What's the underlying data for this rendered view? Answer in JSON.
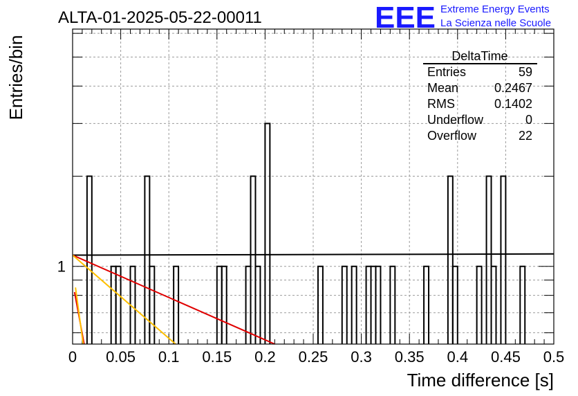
{
  "chart_data": {
    "type": "histogram",
    "title": "ALTA-01-2025-05-22-00011",
    "xlabel": "Time difference [s]",
    "ylabel": "Entries/bin",
    "y_scale": "log",
    "xlim": [
      0,
      0.5
    ],
    "ylim": [
      0.55,
      6.2
    ],
    "grid": true,
    "x_ticks": [
      "0",
      "0.05",
      "0.1",
      "0.15",
      "0.2",
      "0.25",
      "0.3",
      "0.35",
      "0.4",
      "0.45",
      "0.5"
    ],
    "y_ticks": [
      "1"
    ],
    "bin_width": 0.005,
    "bins": [
      {
        "x": 0.015,
        "count": 2
      },
      {
        "x": 0.04,
        "count": 1
      },
      {
        "x": 0.045,
        "count": 1
      },
      {
        "x": 0.06,
        "count": 1
      },
      {
        "x": 0.075,
        "count": 2
      },
      {
        "x": 0.08,
        "count": 1
      },
      {
        "x": 0.105,
        "count": 1
      },
      {
        "x": 0.15,
        "count": 1
      },
      {
        "x": 0.155,
        "count": 1
      },
      {
        "x": 0.18,
        "count": 1
      },
      {
        "x": 0.185,
        "count": 2
      },
      {
        "x": 0.19,
        "count": 1
      },
      {
        "x": 0.2,
        "count": 3
      },
      {
        "x": 0.255,
        "count": 1
      },
      {
        "x": 0.28,
        "count": 1
      },
      {
        "x": 0.29,
        "count": 1
      },
      {
        "x": 0.305,
        "count": 1
      },
      {
        "x": 0.31,
        "count": 1
      },
      {
        "x": 0.315,
        "count": 1
      },
      {
        "x": 0.33,
        "count": 1
      },
      {
        "x": 0.365,
        "count": 1
      },
      {
        "x": 0.39,
        "count": 2
      },
      {
        "x": 0.395,
        "count": 1
      },
      {
        "x": 0.42,
        "count": 1
      },
      {
        "x": 0.43,
        "count": 2
      },
      {
        "x": 0.435,
        "count": 1
      },
      {
        "x": 0.445,
        "count": 2
      },
      {
        "x": 0.465,
        "count": 1
      }
    ],
    "fit_lines": [
      {
        "color": "#000000",
        "points": [
          [
            0.0,
            1.09
          ],
          [
            0.5,
            1.1
          ]
        ]
      },
      {
        "color": "#e00000",
        "points": [
          [
            0.0,
            1.09
          ],
          [
            0.21,
            0.55
          ]
        ]
      },
      {
        "color": "#ffc000",
        "points": [
          [
            0.0,
            1.09
          ],
          [
            0.107,
            0.55
          ]
        ]
      },
      {
        "color": "#e00000",
        "points": [
          [
            0.002,
            0.82
          ],
          [
            0.012,
            0.55
          ]
        ]
      },
      {
        "color": "#ffc000",
        "points": [
          [
            0.003,
            0.85
          ],
          [
            0.011,
            0.55
          ]
        ]
      }
    ],
    "stats_box": {
      "title": "DeltaTime",
      "rows": [
        {
          "label": "Entries",
          "value": "59"
        },
        {
          "label": "Mean",
          "value": "0.2467"
        },
        {
          "label": "RMS",
          "value": "0.1402"
        },
        {
          "label": "Underflow",
          "value": "0"
        },
        {
          "label": "Overflow",
          "value": "22"
        }
      ]
    }
  },
  "logo": {
    "mark": "EEE",
    "line1": "Extreme Energy Events",
    "line2": "La Scienza nelle Scuole"
  }
}
